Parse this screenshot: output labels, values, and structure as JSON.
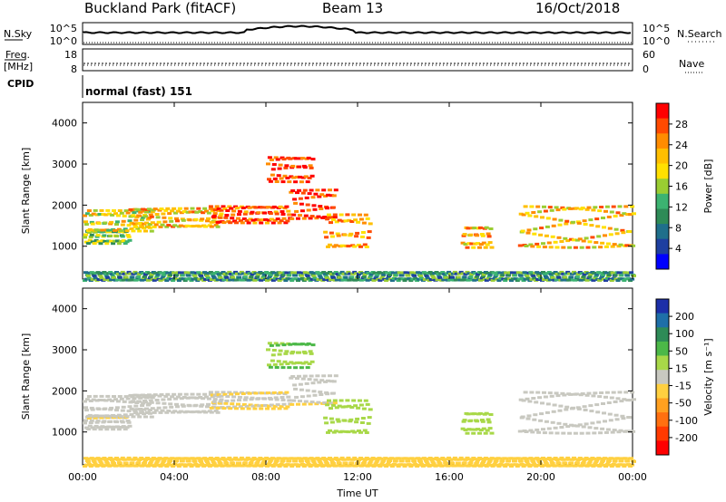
{
  "header": {
    "station": "Buckland Park (fitACF)",
    "beam": "Beam 13",
    "date": "16/Oct/2018"
  },
  "aux_panels": {
    "nsky_label": "N.Sky",
    "nsearch_label": "N.Search",
    "nsky_ticks": [
      "10^5",
      "10^0"
    ],
    "nsearch_ticks": [
      "10^5",
      "10^0"
    ],
    "freq_label_1": "Freq.",
    "freq_label_2": "[MHz]",
    "freq_ticks": [
      "18",
      "8"
    ],
    "nave_label": "Nave",
    "nave_ticks": [
      "60",
      "0"
    ],
    "cpid_label": "CPID",
    "cpid_value": "normal (fast) 151"
  },
  "colorbars": {
    "power": {
      "label": "Power [dB]",
      "ticks": [
        "28",
        "24",
        "20",
        "16",
        "12",
        "8",
        "4"
      ],
      "colors": [
        "#ff0000",
        "#ff4a00",
        "#ff8c00",
        "#ffbf00",
        "#ffe000",
        "#9acd32",
        "#3cb371",
        "#2e8b57",
        "#1f6f8b",
        "#1e3fa0",
        "#0000ff"
      ]
    },
    "velocity": {
      "label": "Velocity [m s⁻¹]",
      "ticks": [
        "200",
        "100",
        "50",
        "15",
        "-15",
        "-50",
        "-100",
        "-200"
      ],
      "colors": [
        "#1c2fa8",
        "#1e6fa8",
        "#2e8b57",
        "#4cb848",
        "#a8d848",
        "#c8c8c0",
        "#ffd040",
        "#ffa020",
        "#ff7010",
        "#ff3a00",
        "#ff0000"
      ]
    }
  },
  "chart_data": [
    {
      "type": "heatmap",
      "name": "power",
      "ylabel": "Slant Range [km]",
      "ylim": [
        200,
        4500
      ],
      "yticks": [
        1000,
        2000,
        3000,
        4000
      ],
      "xlim_hours": [
        0,
        24
      ],
      "xticks_hours": [
        0,
        4,
        8,
        12,
        16,
        20,
        24
      ]
    },
    {
      "type": "heatmap",
      "name": "velocity",
      "ylabel": "Slant Range [km]",
      "xlabel": "Time UT",
      "ylim": [
        200,
        4500
      ],
      "yticks": [
        1000,
        2000,
        3000,
        4000
      ],
      "xticks": [
        "00:00",
        "04:00",
        "08:00",
        "12:00",
        "16:00",
        "20:00",
        "00:00"
      ],
      "xlim_hours": [
        0,
        24
      ],
      "xticks_hours": [
        0,
        4,
        8,
        12,
        16,
        20,
        24
      ]
    }
  ],
  "bands": [
    {
      "t0": 0.0,
      "t1": 2.0,
      "r0": 1100,
      "r1": 1400,
      "pv": 14,
      "vel": -10
    },
    {
      "t0": 0.0,
      "t1": 3.0,
      "r0": 1400,
      "r1": 1900,
      "pv": 18,
      "vel": 0
    },
    {
      "t0": 2.0,
      "t1": 6.0,
      "r0": 1500,
      "r1": 1950,
      "pv": 20,
      "vel": 0
    },
    {
      "t0": 5.5,
      "t1": 9.0,
      "r0": 1600,
      "r1": 2000,
      "pv": 26,
      "vel": -20
    },
    {
      "t0": 9.0,
      "t1": 11.0,
      "r0": 1700,
      "r1": 2400,
      "pv": 28,
      "vel": -10
    },
    {
      "t0": 8.0,
      "t1": 10.0,
      "r0": 2600,
      "r1": 3200,
      "pv": 27,
      "vel": 60
    },
    {
      "t0": 10.5,
      "t1": 12.5,
      "r0": 1000,
      "r1": 1800,
      "pv": 22,
      "vel": 50
    },
    {
      "t0": 16.5,
      "t1": 17.8,
      "r0": 1000,
      "r1": 1500,
      "pv": 21,
      "vel": 40
    },
    {
      "t0": 19.0,
      "t1": 24.0,
      "r0": 1000,
      "r1": 2000,
      "pv": 20,
      "vel": 0
    },
    {
      "t0": 0.0,
      "t1": 24.0,
      "r0": 200,
      "r1": 400,
      "pv": 10,
      "vel": -40
    }
  ]
}
